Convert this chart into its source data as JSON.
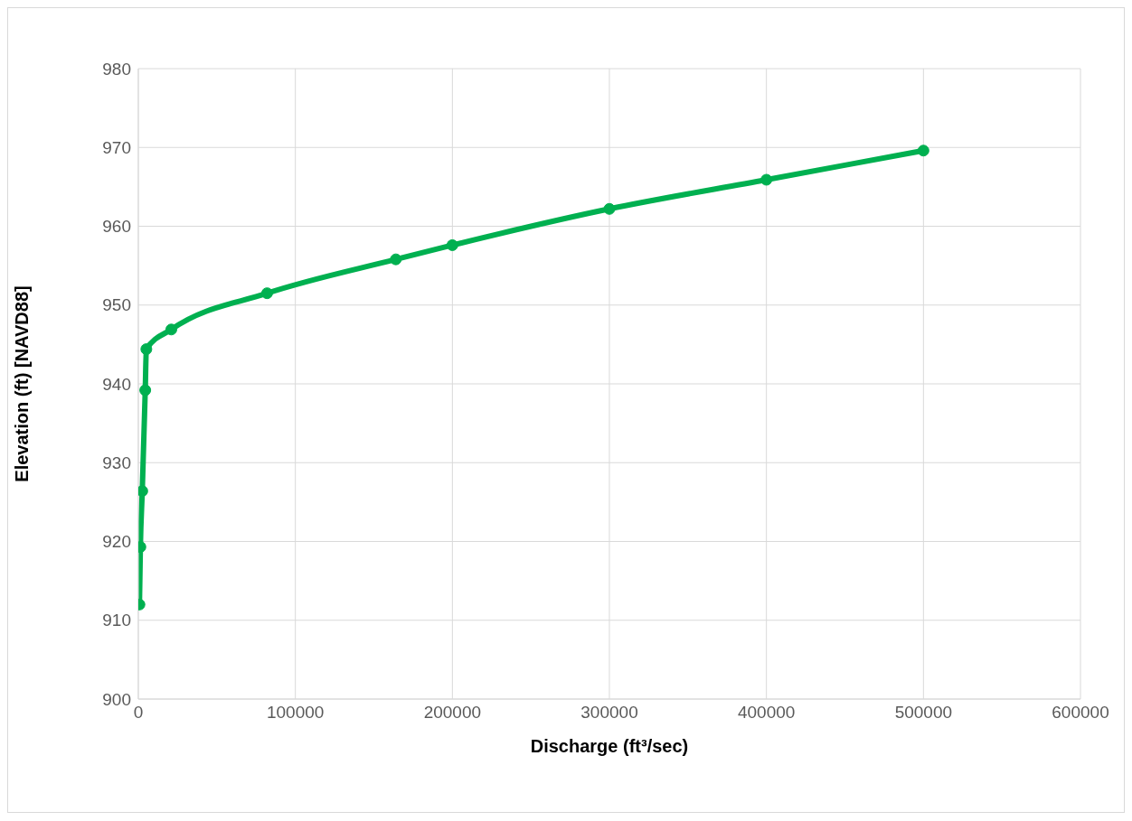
{
  "chart_data": {
    "type": "line",
    "xlabel": "Discharge (ft³/sec)",
    "ylabel": "Elevation (ft) [NAVD88]",
    "x": [
      700,
      1300,
      2500,
      4400,
      5100,
      21000,
      82000,
      164000,
      200000,
      300000,
      400000,
      500000
    ],
    "series": [
      {
        "color": "#00b050",
        "values": [
          912.0,
          919.3,
          926.4,
          939.2,
          944.4,
          946.9,
          951.5,
          955.8,
          957.6,
          962.2,
          965.9,
          969.6
        ]
      }
    ],
    "xlim": [
      0,
      600000
    ],
    "xticks": [
      0,
      100000,
      200000,
      300000,
      400000,
      500000,
      600000
    ],
    "ylim": [
      900,
      980
    ],
    "yticks": [
      900,
      910,
      920,
      930,
      940,
      950,
      960,
      970,
      980
    ],
    "grid": true,
    "marker": "circle",
    "line_style": "solid"
  }
}
